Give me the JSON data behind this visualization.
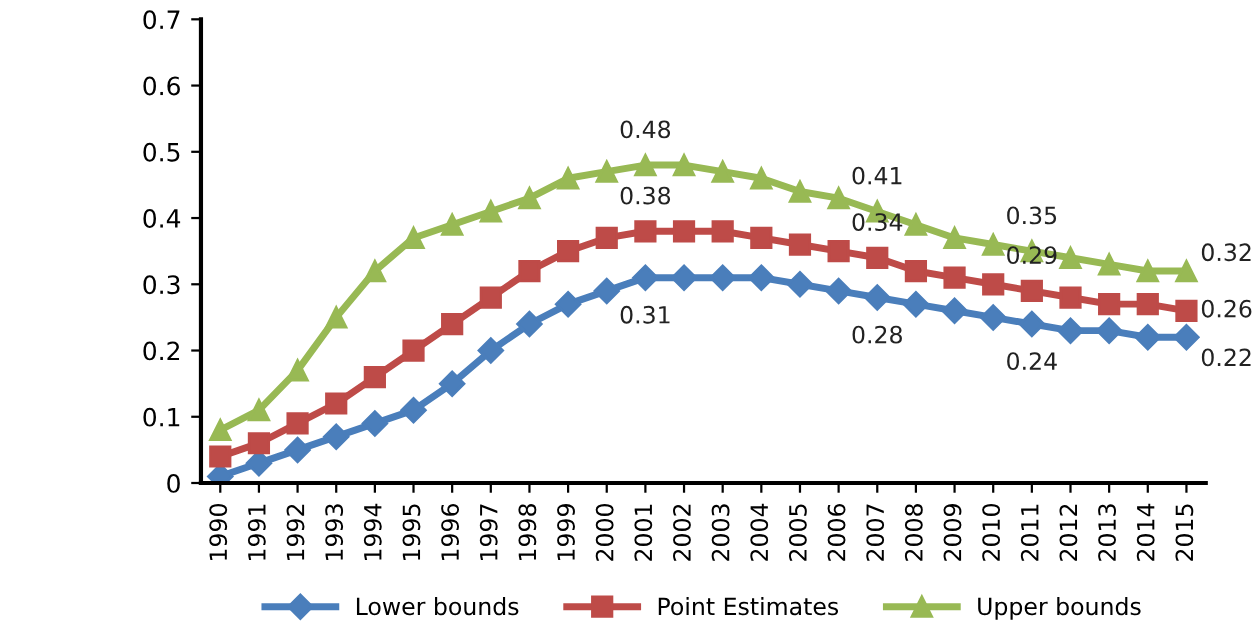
{
  "chart_data": {
    "type": "line",
    "categories": [
      "1990",
      "1991",
      "1992",
      "1993",
      "1994",
      "1995",
      "1996",
      "1997",
      "1998",
      "1999",
      "2000",
      "2001",
      "2002",
      "2003",
      "2004",
      "2005",
      "2006",
      "2007",
      "2008",
      "2009",
      "2010",
      "2011",
      "2012",
      "2013",
      "2014",
      "2015"
    ],
    "series": [
      {
        "name": "Lower bounds",
        "color": "#4a7ebb",
        "marker": "diamond",
        "values": [
          0.01,
          0.03,
          0.05,
          0.07,
          0.09,
          0.11,
          0.15,
          0.2,
          0.24,
          0.27,
          0.29,
          0.31,
          0.31,
          0.31,
          0.31,
          0.3,
          0.29,
          0.28,
          0.27,
          0.26,
          0.25,
          0.24,
          0.23,
          0.23,
          0.22,
          0.22
        ],
        "value_labels": [
          null,
          null,
          null,
          null,
          null,
          null,
          null,
          null,
          null,
          null,
          null,
          "0.31",
          null,
          null,
          null,
          null,
          null,
          "0.28",
          null,
          null,
          null,
          "0.24",
          null,
          null,
          null,
          "0.22"
        ]
      },
      {
        "name": "Point Estimates",
        "color": "#be4b48",
        "marker": "square",
        "values": [
          0.04,
          0.06,
          0.09,
          0.12,
          0.16,
          0.2,
          0.24,
          0.28,
          0.32,
          0.35,
          0.37,
          0.38,
          0.38,
          0.38,
          0.37,
          0.36,
          0.35,
          0.34,
          0.32,
          0.31,
          0.3,
          0.29,
          0.28,
          0.27,
          0.27,
          0.26
        ],
        "value_labels": [
          null,
          null,
          null,
          null,
          null,
          null,
          null,
          null,
          null,
          null,
          null,
          "0.38",
          null,
          null,
          null,
          null,
          null,
          "0.34",
          null,
          null,
          null,
          "0.29",
          null,
          null,
          null,
          "0.26"
        ]
      },
      {
        "name": "Upper bounds",
        "color": "#98b954",
        "marker": "triangle",
        "values": [
          0.08,
          0.11,
          0.17,
          0.25,
          0.32,
          0.37,
          0.39,
          0.41,
          0.43,
          0.46,
          0.47,
          0.48,
          0.48,
          0.47,
          0.46,
          0.44,
          0.43,
          0.41,
          0.39,
          0.37,
          0.36,
          0.35,
          0.34,
          0.33,
          0.32,
          0.32
        ],
        "value_labels": [
          null,
          null,
          null,
          null,
          null,
          null,
          null,
          null,
          null,
          null,
          null,
          "0.48",
          null,
          null,
          null,
          null,
          null,
          "0.41",
          null,
          null,
          null,
          "0.35",
          null,
          null,
          null,
          "0.32"
        ]
      }
    ],
    "ylim": [
      0,
      0.7
    ],
    "yticks": [
      0,
      0.1,
      0.2,
      0.3,
      0.4,
      0.5,
      0.6,
      0.7
    ],
    "grid": false,
    "legend": "bottom",
    "line_style": "solid"
  }
}
